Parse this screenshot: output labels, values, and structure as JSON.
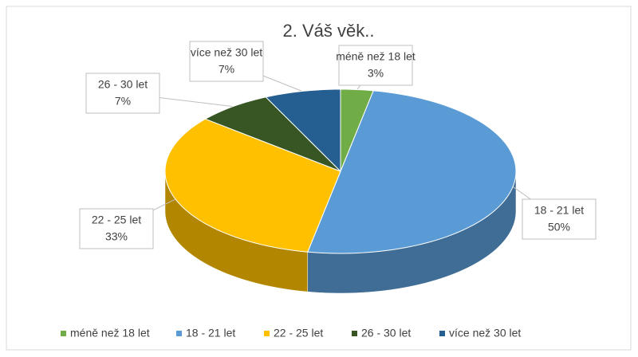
{
  "chart_data": {
    "type": "pie",
    "title": "2. Váš věk..",
    "categories": [
      "méně než 18 let",
      "18 - 21 let",
      "22 - 25 let",
      "26 - 30 let",
      "více než 30 let"
    ],
    "values": [
      3,
      50,
      33,
      7,
      7
    ],
    "value_labels": [
      "3%",
      "50%",
      "33%",
      "7%",
      "7%"
    ],
    "colors": [
      "#70ad47",
      "#5b9bd5",
      "#ffc000",
      "#375623",
      "#255e91"
    ],
    "legend": "bottom"
  }
}
